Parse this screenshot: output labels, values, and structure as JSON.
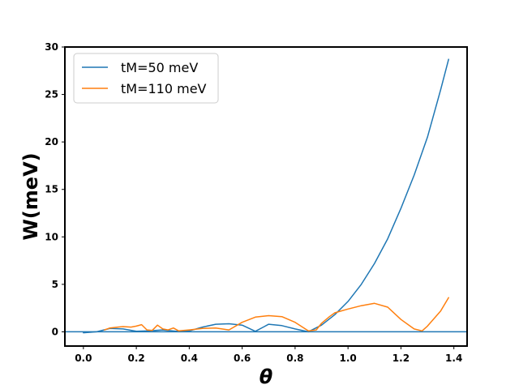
{
  "chart_data": {
    "type": "line",
    "title": "",
    "xlabel": "θ",
    "ylabel": "W(meV)",
    "xlim": [
      -0.07,
      1.45
    ],
    "ylim": [
      -1.5,
      30
    ],
    "xticks": [
      0.0,
      0.2,
      0.4,
      0.6,
      0.8,
      1.0,
      1.2,
      1.4
    ],
    "xtick_labels": [
      "0.0",
      "0.2",
      "0.4",
      "0.6",
      "0.8",
      "1.0",
      "1.2",
      "1.4"
    ],
    "yticks": [
      0,
      5,
      10,
      15,
      20,
      25,
      30
    ],
    "ytick_labels": [
      "0",
      "5",
      "10",
      "15",
      "20",
      "25",
      "30"
    ],
    "legend_position": "top-left",
    "reference_line": {
      "y": 0,
      "color": "#1f77b4"
    },
    "series": [
      {
        "name": "tM=50 meV",
        "color": "#1f77b4",
        "x": [
          0.0,
          0.05,
          0.1,
          0.15,
          0.2,
          0.25,
          0.3,
          0.35,
          0.4,
          0.45,
          0.5,
          0.55,
          0.6,
          0.65,
          0.68,
          0.7,
          0.75,
          0.8,
          0.85,
          0.9,
          0.95,
          1.0,
          1.05,
          1.1,
          1.15,
          1.2,
          1.25,
          1.3,
          1.35,
          1.38
        ],
        "y": [
          -0.1,
          0.0,
          0.35,
          0.3,
          0.05,
          0.1,
          0.2,
          0.05,
          0.1,
          0.5,
          0.8,
          0.85,
          0.7,
          0.05,
          0.5,
          0.8,
          0.65,
          0.3,
          0.0,
          0.7,
          1.8,
          3.2,
          5.0,
          7.2,
          9.8,
          13.0,
          16.5,
          20.5,
          25.5,
          28.7
        ]
      },
      {
        "name": "tM=110 meV",
        "color": "#ff7f0e",
        "x": [
          0.08,
          0.1,
          0.13,
          0.15,
          0.18,
          0.2,
          0.22,
          0.24,
          0.26,
          0.28,
          0.3,
          0.32,
          0.34,
          0.36,
          0.4,
          0.45,
          0.5,
          0.55,
          0.6,
          0.65,
          0.7,
          0.75,
          0.8,
          0.85,
          0.88,
          0.9,
          0.93,
          0.95,
          1.0,
          1.05,
          1.1,
          1.15,
          1.2,
          1.25,
          1.28,
          1.3,
          1.35,
          1.38
        ],
        "y": [
          0.2,
          0.4,
          0.5,
          0.55,
          0.5,
          0.6,
          0.75,
          0.2,
          0.15,
          0.7,
          0.3,
          0.2,
          0.4,
          0.1,
          0.2,
          0.35,
          0.4,
          0.2,
          1.0,
          1.55,
          1.7,
          1.6,
          1.0,
          0.1,
          0.2,
          0.9,
          1.6,
          2.0,
          2.4,
          2.75,
          3.0,
          2.6,
          1.3,
          0.3,
          0.1,
          0.6,
          2.2,
          3.6
        ]
      }
    ]
  }
}
